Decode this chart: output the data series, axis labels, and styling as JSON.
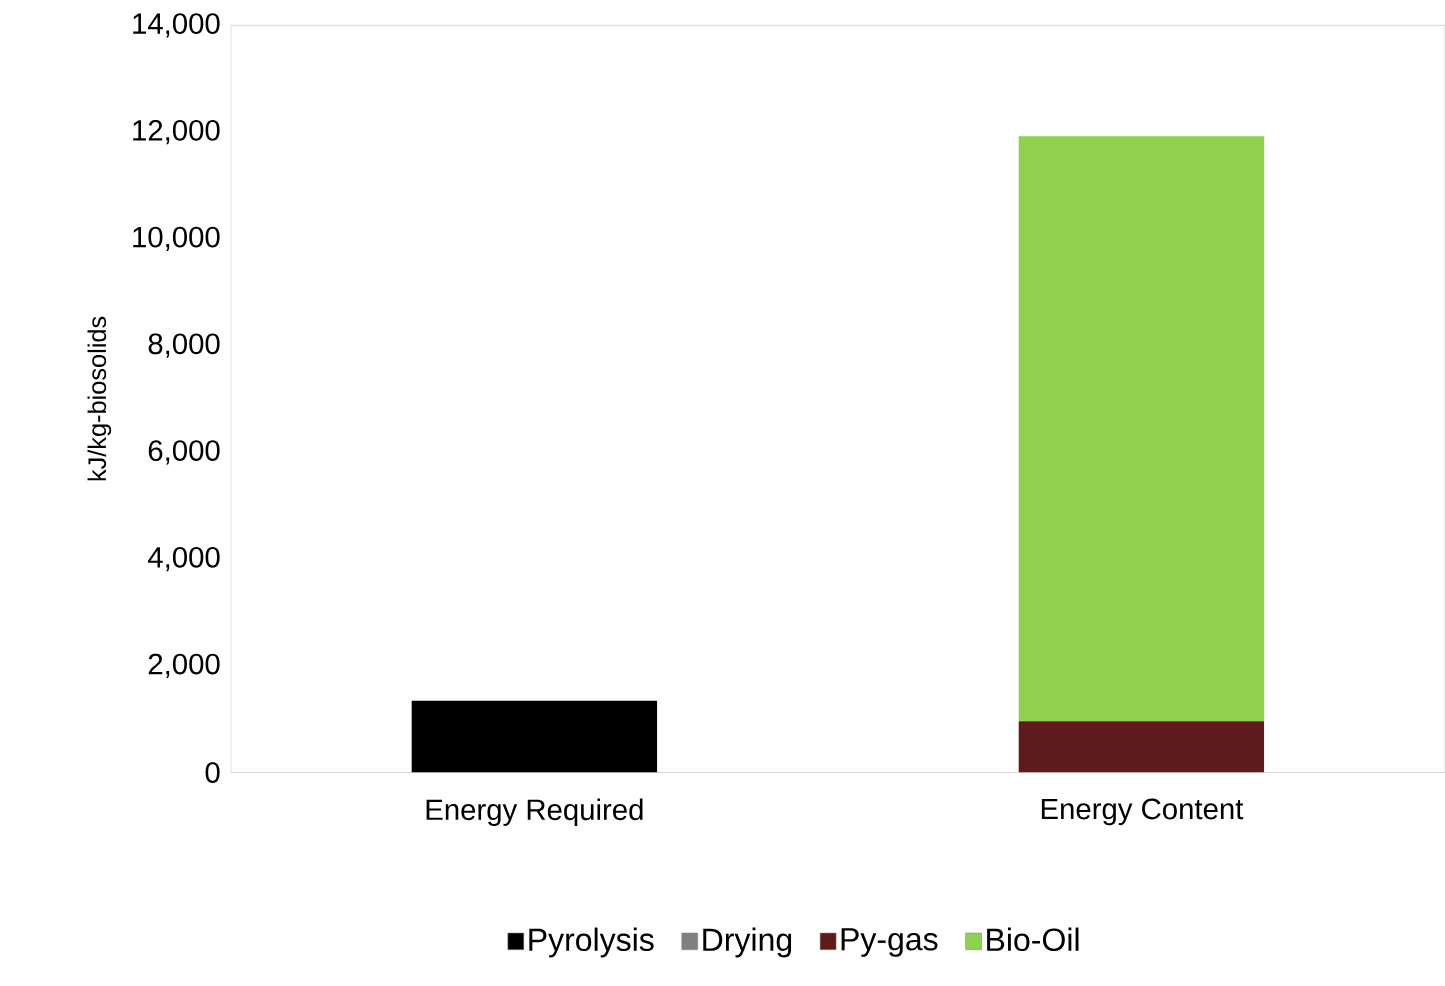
{
  "chart_data": {
    "type": "bar",
    "stacked": true,
    "ylabel": "kJ/kg-biosolids",
    "categories": [
      "Energy Required",
      "Energy Content"
    ],
    "series": [
      {
        "name": "Pyrolysis",
        "color": "#000000",
        "values": [
          1350,
          null
        ]
      },
      {
        "name": "Drying",
        "color": "#808080",
        "values": [
          null,
          null
        ]
      },
      {
        "name": "Py-gas",
        "color": "#5e1a1d",
        "values": [
          null,
          960
        ]
      },
      {
        "name": "Bio-Oil",
        "color": "#92d050",
        "values": [
          null,
          10960
        ]
      }
    ],
    "ylim": [
      0,
      14000
    ],
    "yticks": [
      0,
      {
        "value": 2000,
        "label": "2,000"
      },
      {
        "value": 4000,
        "label": "4,000"
      },
      {
        "value": 6000,
        "label": "6,000"
      },
      {
        "value": 8000,
        "label": "8,000"
      },
      {
        "value": 10000,
        "label": "10,000"
      },
      {
        "value": 12000,
        "label": "12,000"
      },
      {
        "value": 14000,
        "label": "14,000"
      }
    ],
    "grid": false,
    "legend": "bottom"
  }
}
